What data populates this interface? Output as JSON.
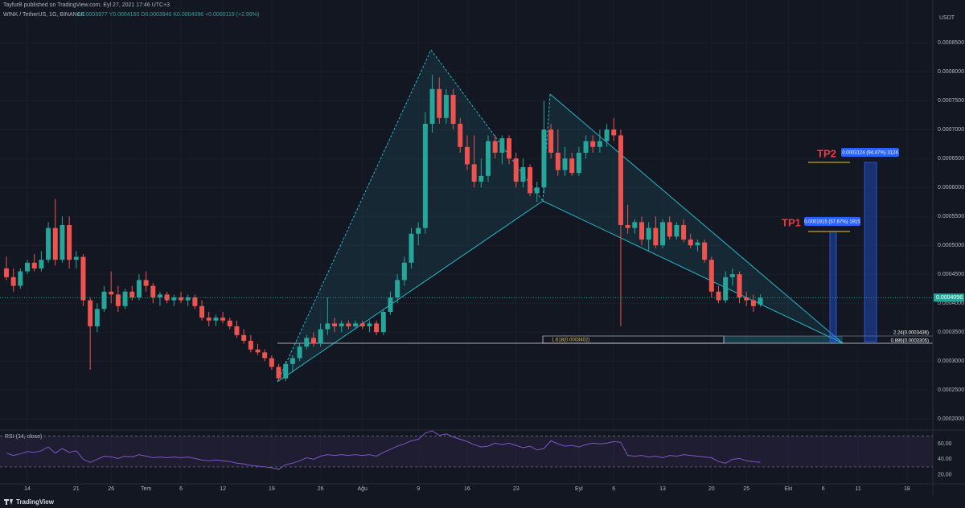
{
  "header": {
    "byline": "TayfurB published on TradingView.com, Eyl 27, 2021 17:46 UTC+3",
    "symbol": "WINK / TetherUS, 1G, BINANCE",
    "ohlc": "A0.0003977 Y0.0004150 D0.0003940 K0.0004096 +0.0000119 (+2.99%)"
  },
  "footer": {
    "brand": "TradingView"
  },
  "chart_data": [
    {
      "type": "candlestick",
      "y_unit": "USDT",
      "up_color": "#26a69a",
      "down_color": "#ef5350",
      "grid": true,
      "xlim": [
        -0.92,
        132.7
      ],
      "xticks": [
        {
          "value": 3,
          "label": "14"
        },
        {
          "value": 10,
          "label": "21"
        },
        {
          "value": 15,
          "label": "26"
        },
        {
          "value": 20,
          "label": "Tem"
        },
        {
          "value": 25,
          "label": "6"
        },
        {
          "value": 31,
          "label": "12"
        },
        {
          "value": 38,
          "label": "19"
        },
        {
          "value": 45,
          "label": "26"
        },
        {
          "value": 51,
          "label": "Ağu"
        },
        {
          "value": 59,
          "label": "9"
        },
        {
          "value": 66,
          "label": "16"
        },
        {
          "value": 73,
          "label": "23"
        },
        {
          "value": 82,
          "label": "Eyl"
        },
        {
          "value": 87,
          "label": "6"
        },
        {
          "value": 94,
          "label": "13"
        },
        {
          "value": 101,
          "label": "20"
        },
        {
          "value": 106,
          "label": "25"
        },
        {
          "value": 112,
          "label": "Eki"
        },
        {
          "value": 117,
          "label": "6"
        },
        {
          "value": 122,
          "label": "11"
        },
        {
          "value": 129,
          "label": "18"
        }
      ],
      "ylim": [
        0.000185,
        0.00091
      ],
      "yticks": [
        {
          "value": 0.0002,
          "label": "0.0002000"
        },
        {
          "value": 0.00025,
          "label": "0.0002500"
        },
        {
          "value": 0.0003,
          "label": "0.0003000"
        },
        {
          "value": 0.00035,
          "label": "0.0003500"
        },
        {
          "value": 0.0004,
          "label": "0.0004000"
        },
        {
          "value": 0.00045,
          "label": "0.0004500"
        },
        {
          "value": 0.0005,
          "label": "0.0005000"
        },
        {
          "value": 0.00055,
          "label": "0.0005500"
        },
        {
          "value": 0.0006,
          "label": "0.0006000"
        },
        {
          "value": 0.00065,
          "label": "0.0006500"
        },
        {
          "value": 0.0007,
          "label": "0.0007000"
        },
        {
          "value": 0.00075,
          "label": "0.0007500"
        },
        {
          "value": 0.0008,
          "label": "0.0008000"
        },
        {
          "value": 0.00085,
          "label": "0.0008500"
        }
      ],
      "open": [
        0.00046,
        0.000445,
        0.00043,
        0.000455,
        0.00047,
        0.00046,
        0.000475,
        0.00053,
        0.000475,
        0.000535,
        0.000475,
        0.00048,
        0.000405,
        0.00036,
        0.00039,
        0.00042,
        0.000415,
        0.000395,
        0.00042,
        0.00041,
        0.00044,
        0.00043,
        0.00041,
        0.000415,
        0.000405,
        0.00041,
        0.000405,
        0.00041,
        0.000395,
        0.000375,
        0.00037,
        0.000375,
        0.00037,
        0.00036,
        0.000345,
        0.000335,
        0.00032,
        0.000315,
        0.000305,
        0.00029,
        0.00027,
        0.000295,
        0.000305,
        0.000325,
        0.00034,
        0.00033,
        0.000355,
        0.000365,
        0.00036,
        0.000365,
        0.00036,
        0.000365,
        0.00036,
        0.000365,
        0.00035,
        0.000385,
        0.00041,
        0.00044,
        0.00047,
        0.00052,
        0.00053,
        0.00071,
        0.00077,
        0.00072,
        0.00076,
        0.00071,
        0.00067,
        0.00064,
        0.00061,
        0.00062,
        0.00068,
        0.00066,
        0.000685,
        0.00065,
        0.00061,
        0.000635,
        0.00059,
        0.0006,
        0.0007,
        0.00066,
        0.00063,
        0.00065,
        0.000625,
        0.00066,
        0.00068,
        0.00067,
        0.00068,
        0.0007,
        0.00069,
        0.000535,
        0.00053,
        0.00054,
        0.00051,
        0.00053,
        0.0005,
        0.00054,
        0.000515,
        0.000535,
        0.00051,
        0.0005,
        0.000505,
        0.000475,
        0.00042,
        0.000405,
        0.000445,
        0.00045,
        0.00041,
        0.000405,
        0.0003977
      ],
      "high": [
        0.00048,
        0.00046,
        0.00046,
        0.000475,
        0.000485,
        0.00049,
        0.00054,
        0.00058,
        0.00055,
        0.00055,
        0.00049,
        0.000485,
        0.00041,
        0.0004,
        0.00043,
        0.000455,
        0.00043,
        0.000425,
        0.00043,
        0.00045,
        0.000455,
        0.000435,
        0.00042,
        0.00042,
        0.000415,
        0.00042,
        0.000415,
        0.000415,
        0.000405,
        0.000385,
        0.00038,
        0.000385,
        0.000375,
        0.00037,
        0.000355,
        0.000345,
        0.00033,
        0.00032,
        0.00031,
        0.000295,
        0.0003,
        0.00031,
        0.00033,
        0.000345,
        0.00035,
        0.000365,
        0.00041,
        0.000375,
        0.00037,
        0.00037,
        0.00037,
        0.00037,
        0.00037,
        0.00037,
        0.00039,
        0.00042,
        0.00045,
        0.00048,
        0.00053,
        0.00054,
        0.00073,
        0.000795,
        0.00079,
        0.00077,
        0.00077,
        0.00072,
        0.00069,
        0.00069,
        0.00065,
        0.00069,
        0.00069,
        0.00069,
        0.00069,
        0.00066,
        0.00065,
        0.00064,
        0.00061,
        0.00075,
        0.00071,
        0.0007,
        0.00067,
        0.00066,
        0.00067,
        0.00069,
        0.00069,
        0.0007,
        0.00071,
        0.00072,
        0.0007,
        0.00057,
        0.000545,
        0.00055,
        0.00054,
        0.00055,
        0.000545,
        0.00055,
        0.00054,
        0.000545,
        0.00052,
        0.00051,
        0.00051,
        0.00048,
        0.00043,
        0.000455,
        0.00046,
        0.000455,
        0.00042,
        0.000415,
        0.000415
      ],
      "low": [
        0.00044,
        0.00042,
        0.000425,
        0.00045,
        0.000455,
        0.000455,
        0.00047,
        0.000465,
        0.00047,
        0.00046,
        0.00046,
        0.000395,
        0.000285,
        0.00035,
        0.000385,
        0.0004,
        0.000385,
        0.00039,
        0.000405,
        0.000405,
        0.00042,
        0.0004,
        0.000395,
        0.0004,
        0.000395,
        0.0004,
        0.000395,
        0.00039,
        0.00037,
        0.00036,
        0.00036,
        0.000365,
        0.000355,
        0.00034,
        0.00033,
        0.000315,
        0.00031,
        0.0003,
        0.000285,
        0.000265,
        0.000265,
        0.00028,
        0.0003,
        0.00032,
        0.000325,
        0.000325,
        0.000345,
        0.00035,
        0.00035,
        0.000355,
        0.000355,
        0.000355,
        0.00035,
        0.000345,
        0.000345,
        0.00038,
        0.0004,
        0.00043,
        0.00046,
        0.0005,
        0.00052,
        0.000695,
        0.00071,
        0.00071,
        0.0007,
        0.00066,
        0.00063,
        0.0006,
        0.0006,
        0.00061,
        0.00065,
        0.00064,
        0.00064,
        0.0006,
        0.0006,
        0.000585,
        0.000575,
        0.00059,
        0.00065,
        0.00062,
        0.00062,
        0.00062,
        0.00062,
        0.00065,
        0.00066,
        0.00066,
        0.00067,
        0.00068,
        0.00036,
        0.00052,
        0.00052,
        0.0005,
        0.00049,
        0.000495,
        0.000495,
        0.00051,
        0.00051,
        0.000505,
        0.000495,
        0.00049,
        0.00047,
        0.00041,
        0.0004,
        0.0004,
        0.00043,
        0.0004,
        0.000395,
        0.000385,
        0.000394
      ],
      "close": [
        0.000445,
        0.00043,
        0.000455,
        0.00047,
        0.00046,
        0.000475,
        0.00053,
        0.000475,
        0.000535,
        0.000475,
        0.00048,
        0.000405,
        0.00036,
        0.00039,
        0.00042,
        0.000415,
        0.000395,
        0.00042,
        0.00041,
        0.00044,
        0.00043,
        0.00041,
        0.000415,
        0.000405,
        0.00041,
        0.000405,
        0.00041,
        0.000395,
        0.000375,
        0.00037,
        0.000375,
        0.00037,
        0.00036,
        0.000345,
        0.000335,
        0.00032,
        0.000315,
        0.000305,
        0.00029,
        0.00027,
        0.000295,
        0.000305,
        0.000325,
        0.00034,
        0.00033,
        0.000355,
        0.000365,
        0.00036,
        0.000365,
        0.00036,
        0.000365,
        0.00036,
        0.000365,
        0.00035,
        0.000385,
        0.00041,
        0.00044,
        0.00047,
        0.00052,
        0.00053,
        0.00071,
        0.00077,
        0.00072,
        0.00076,
        0.00071,
        0.00067,
        0.00064,
        0.00061,
        0.00062,
        0.00068,
        0.00066,
        0.000685,
        0.00065,
        0.00061,
        0.000635,
        0.00059,
        0.0006,
        0.0007,
        0.00066,
        0.00063,
        0.00065,
        0.000625,
        0.00066,
        0.00068,
        0.00067,
        0.00068,
        0.0007,
        0.00069,
        0.000535,
        0.00053,
        0.00054,
        0.00051,
        0.00053,
        0.0005,
        0.00054,
        0.000515,
        0.000535,
        0.00051,
        0.0005,
        0.000505,
        0.000475,
        0.00042,
        0.000405,
        0.000445,
        0.00045,
        0.00041,
        0.000405,
        0.000395,
        0.0004096
      ],
      "annotations": {
        "tp1": "TP1",
        "tp2": "TP2",
        "tp1_box": "0.0001915 (57.67%) 1915",
        "tp2_box": "0.0003124 (94.47%) 3124",
        "fib_224": "2.24(0.0003436)",
        "fib_0886": "0.886(0.0003305)",
        "fib_1618": "1.618(0.0003402)"
      }
    },
    {
      "type": "line",
      "title": "RSI (14, close)",
      "color": "#7e57c2",
      "ylim": [
        8,
        78
      ],
      "yticks": [
        {
          "value": 20,
          "label": "20.00"
        },
        {
          "value": 40,
          "label": "40.00"
        },
        {
          "value": 60,
          "label": "60.00"
        }
      ],
      "bands": [
        30,
        70
      ],
      "values": [
        48,
        45,
        47,
        50,
        49,
        51,
        56,
        48,
        54,
        49,
        51,
        40,
        36,
        40,
        44,
        43,
        41,
        44,
        43,
        46,
        44,
        42,
        43,
        42,
        43,
        42,
        43,
        41,
        39,
        38,
        39,
        38,
        37,
        35,
        34,
        32,
        31,
        30,
        29,
        27,
        33,
        35,
        38,
        42,
        40,
        44,
        46,
        45,
        46,
        45,
        46,
        45,
        46,
        44,
        49,
        53,
        57,
        60,
        64,
        66,
        74,
        77,
        71,
        73,
        69,
        66,
        63,
        59,
        56,
        57,
        61,
        59,
        61,
        58,
        55,
        57,
        52,
        54,
        64,
        60,
        57,
        58,
        56,
        59,
        61,
        60,
        61,
        63,
        62,
        45,
        44,
        45,
        43,
        44,
        42,
        45,
        44,
        46,
        45,
        44,
        43,
        42,
        37,
        35,
        40,
        41,
        38,
        37,
        36
      ]
    }
  ]
}
